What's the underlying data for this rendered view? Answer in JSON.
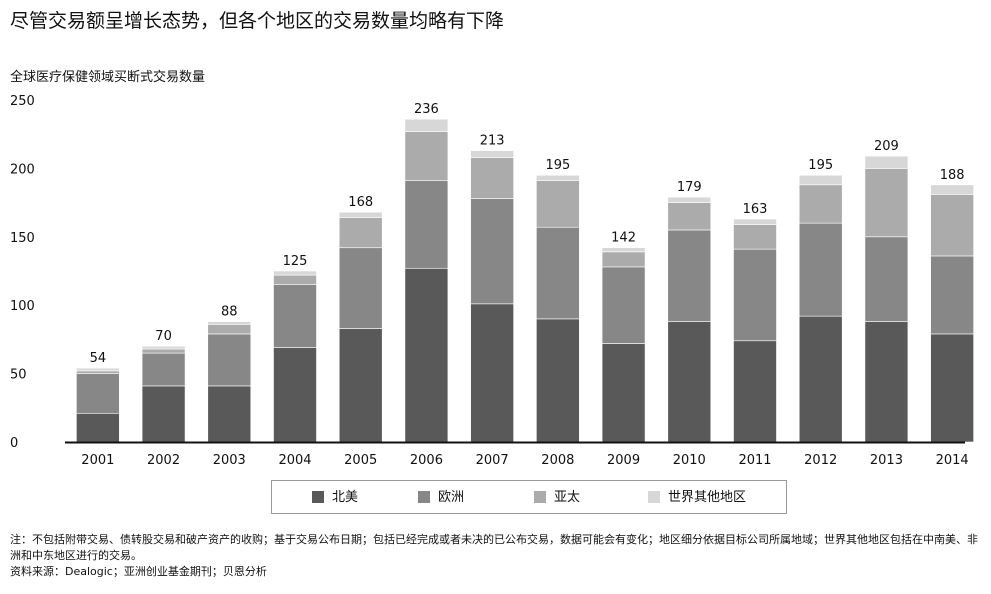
{
  "title": "尽管交易额呈增长态势，但各个地区的交易数量均略有下降",
  "chart_data": {
    "type": "bar",
    "stacked": true,
    "subtitle": "全球医疗保健领域买断式交易数量",
    "categories": [
      "2001",
      "2002",
      "2003",
      "2004",
      "2005",
      "2006",
      "2007",
      "2008",
      "2009",
      "2010",
      "2011",
      "2012",
      "2013",
      "2014"
    ],
    "series": [
      {
        "name": "北美",
        "color": "#595959",
        "values": [
          21,
          41,
          41,
          69,
          83,
          127,
          101,
          90,
          72,
          88,
          74,
          92,
          88,
          79
        ]
      },
      {
        "name": "欧洲",
        "color": "#878787",
        "values": [
          29,
          24,
          38,
          46,
          59,
          64,
          77,
          67,
          56,
          67,
          67,
          68,
          62,
          57
        ]
      },
      {
        "name": "亚太",
        "color": "#ababab",
        "values": [
          2,
          3,
          7,
          7,
          22,
          36,
          30,
          34,
          11,
          20,
          18,
          28,
          50,
          45
        ]
      },
      {
        "name": "世界其他地区",
        "color": "#d7d7d7",
        "values": [
          2,
          2,
          2,
          3,
          4,
          9,
          5,
          4,
          3,
          4,
          4,
          7,
          9,
          7
        ]
      }
    ],
    "totals": [
      54,
      70,
      88,
      125,
      168,
      236,
      213,
      195,
      142,
      179,
      163,
      195,
      209,
      188
    ],
    "ylim": [
      0,
      250
    ],
    "yticks": [
      0,
      50,
      100,
      150,
      200,
      250
    ],
    "grid": false,
    "legend_position": "bottom"
  },
  "notes": {
    "line1": "注：不包括附带交易、债转股交易和破产资产的收购；基于交易公布日期；包括已经完成或者未决的已公布交易，数据可能会有变化；地区细分依据目标公司所属地域；世界其他地区包括在中南美、非洲和中东地区进行的交易。",
    "line2": "资料来源：Dealogic；亚洲创业基金期刊；贝恩分析"
  }
}
